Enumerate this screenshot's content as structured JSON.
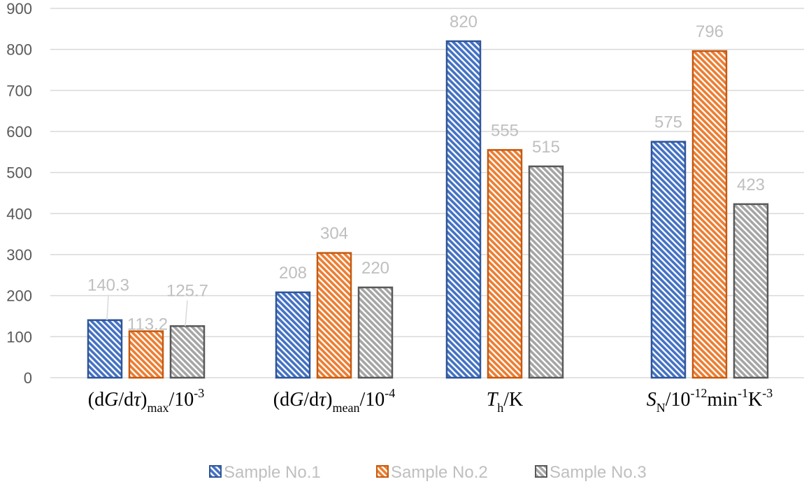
{
  "chart_data": {
    "type": "bar",
    "categories": [
      "(dG/dτ)max/10-3",
      "(dG/dτ)mean/10-4",
      "Th/K",
      "SN/10-12min-1K-3"
    ],
    "category_parts": [
      [
        {
          "t": "(d",
          "style": "normal"
        },
        {
          "t": "G",
          "style": "italic"
        },
        {
          "t": "/d",
          "style": "normal"
        },
        {
          "t": "τ",
          "style": "italic"
        },
        {
          "t": ")",
          "style": "normal"
        },
        {
          "t": "max",
          "style": "sub"
        },
        {
          "t": "/10",
          "style": "normal"
        },
        {
          "t": "-3",
          "style": "sup"
        }
      ],
      [
        {
          "t": "(d",
          "style": "normal"
        },
        {
          "t": "G",
          "style": "italic"
        },
        {
          "t": "/d",
          "style": "normal"
        },
        {
          "t": "τ",
          "style": "italic"
        },
        {
          "t": ")",
          "style": "normal"
        },
        {
          "t": "mean",
          "style": "sub"
        },
        {
          "t": "/10",
          "style": "normal"
        },
        {
          "t": "-4",
          "style": "sup"
        }
      ],
      [
        {
          "t": "T",
          "style": "italic"
        },
        {
          "t": "h",
          "style": "sub"
        },
        {
          "t": "/K",
          "style": "normal"
        }
      ],
      [
        {
          "t": "S",
          "style": "italic"
        },
        {
          "t": "N",
          "style": "sub"
        },
        {
          "t": "/10",
          "style": "normal"
        },
        {
          "t": "-12",
          "style": "sup"
        },
        {
          "t": "min",
          "style": "normal"
        },
        {
          "t": "-1",
          "style": "sup"
        },
        {
          "t": "K",
          "style": "normal"
        },
        {
          "t": "-3",
          "style": "sup"
        }
      ]
    ],
    "series": [
      {
        "name": "Sample No.1",
        "values": [
          140.3,
          208,
          820,
          575
        ],
        "labels": [
          "140.3",
          "208",
          "820",
          "575"
        ],
        "fill": "#4472c4",
        "stroke": "#2f5597"
      },
      {
        "name": "Sample No.2",
        "values": [
          113.2,
          304,
          555,
          796
        ],
        "labels": [
          "113.2",
          "304",
          "555",
          "796"
        ],
        "fill": "#ed7d31",
        "stroke": "#c55a11"
      },
      {
        "name": "Sample No.3",
        "values": [
          125.7,
          220,
          515,
          423
        ],
        "labels": [
          "125.7",
          "220",
          "515",
          "423"
        ],
        "fill": "#a5a5a5",
        "stroke": "#595959"
      }
    ],
    "yticks": [
      "0",
      "100",
      "200",
      "300",
      "400",
      "500",
      "600",
      "700",
      "800",
      "900"
    ],
    "ylim": [
      0,
      900
    ],
    "grid": true,
    "legend_position": "bottom",
    "bar_pattern": "diagonal-hatch"
  }
}
